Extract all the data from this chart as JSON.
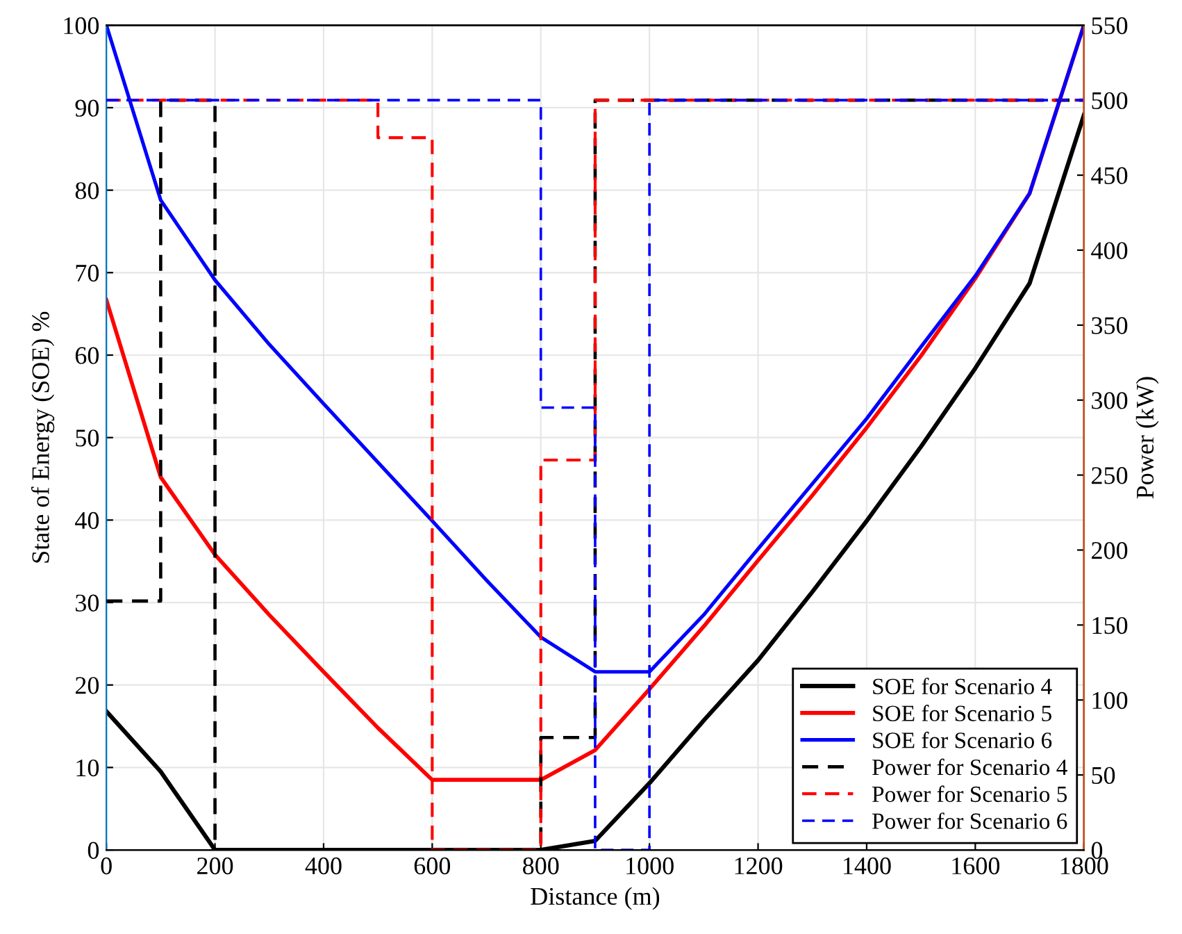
{
  "chart_data": {
    "type": "line",
    "xlabel": "Distance (m)",
    "ylabel": "State of Energy (SOE) %",
    "y2label": "Power (kW)",
    "xlim": [
      0,
      1800
    ],
    "xticks": [
      0,
      200,
      400,
      600,
      800,
      1000,
      1200,
      1400,
      1600,
      1800
    ],
    "ylim": [
      0,
      100
    ],
    "yticks": [
      0,
      10,
      20,
      30,
      40,
      50,
      60,
      70,
      80,
      90,
      100
    ],
    "y2lim": [
      0,
      550
    ],
    "y2ticks": [
      0,
      50,
      100,
      150,
      200,
      250,
      300,
      350,
      400,
      450,
      500,
      550
    ],
    "grid": true,
    "legend": "bottom right",
    "series": [
      {
        "name": "SOE for Scenario 4",
        "color": "#000000",
        "line_style": "solid",
        "x": [
          0,
          100,
          200,
          800,
          900,
          1000,
          1100,
          1200,
          1300,
          1400,
          1500,
          1600,
          1700,
          1800
        ],
        "values": [
          16.8,
          9.5,
          0,
          0,
          1.1,
          8.1,
          15.7,
          23,
          31.3,
          39.9,
          48.9,
          58.4,
          68.7,
          89.1
        ]
      },
      {
        "name": "SOE for Scenario 5",
        "color": "#ff0000",
        "line_style": "solid",
        "x": [
          0,
          100,
          200,
          300,
          400,
          500,
          600,
          800,
          900,
          1000,
          1100,
          1200,
          1300,
          1400,
          1500,
          1600,
          1700,
          1800
        ],
        "values": [
          66.7,
          45.2,
          35.8,
          28.5,
          21.6,
          14.8,
          8.5,
          8.5,
          12.1,
          19.5,
          27.1,
          35.1,
          43,
          51.2,
          59.9,
          69.3,
          79.6,
          100
        ]
      },
      {
        "name": "SOE for Scenario 6",
        "color": "#0000ff",
        "line_style": "solid",
        "x": [
          0,
          100,
          200,
          300,
          400,
          500,
          600,
          700,
          800,
          900,
          1000,
          1100,
          1200,
          1300,
          1400,
          1500,
          1600,
          1700,
          1800
        ],
        "values": [
          100,
          78.8,
          69.1,
          61.3,
          54.1,
          47,
          39.9,
          32.7,
          25.8,
          21.6,
          21.6,
          28.5,
          36.5,
          44.4,
          52.3,
          61,
          69.6,
          79.6,
          100
        ]
      },
      {
        "name": "Power for Scenario 4",
        "type": "step",
        "axis": "y2",
        "color": "#000000",
        "line_style": "dashed",
        "x": [
          0,
          100,
          200,
          800,
          900,
          1800
        ],
        "values": [
          166,
          500,
          0,
          75,
          500,
          500
        ]
      },
      {
        "name": "Power for Scenario 5",
        "type": "step",
        "axis": "y2",
        "color": "#ff0000",
        "line_style": "dashed",
        "x": [
          0,
          500,
          600,
          800,
          900,
          1800
        ],
        "values": [
          500,
          475,
          0,
          260,
          500,
          500
        ]
      },
      {
        "name": "Power for Scenario 6",
        "type": "step",
        "axis": "y2",
        "color": "#0000ff",
        "line_style": "dashed",
        "x": [
          0,
          800,
          900,
          1000,
          1800
        ],
        "values": [
          500,
          295,
          0,
          500,
          500
        ]
      }
    ]
  }
}
